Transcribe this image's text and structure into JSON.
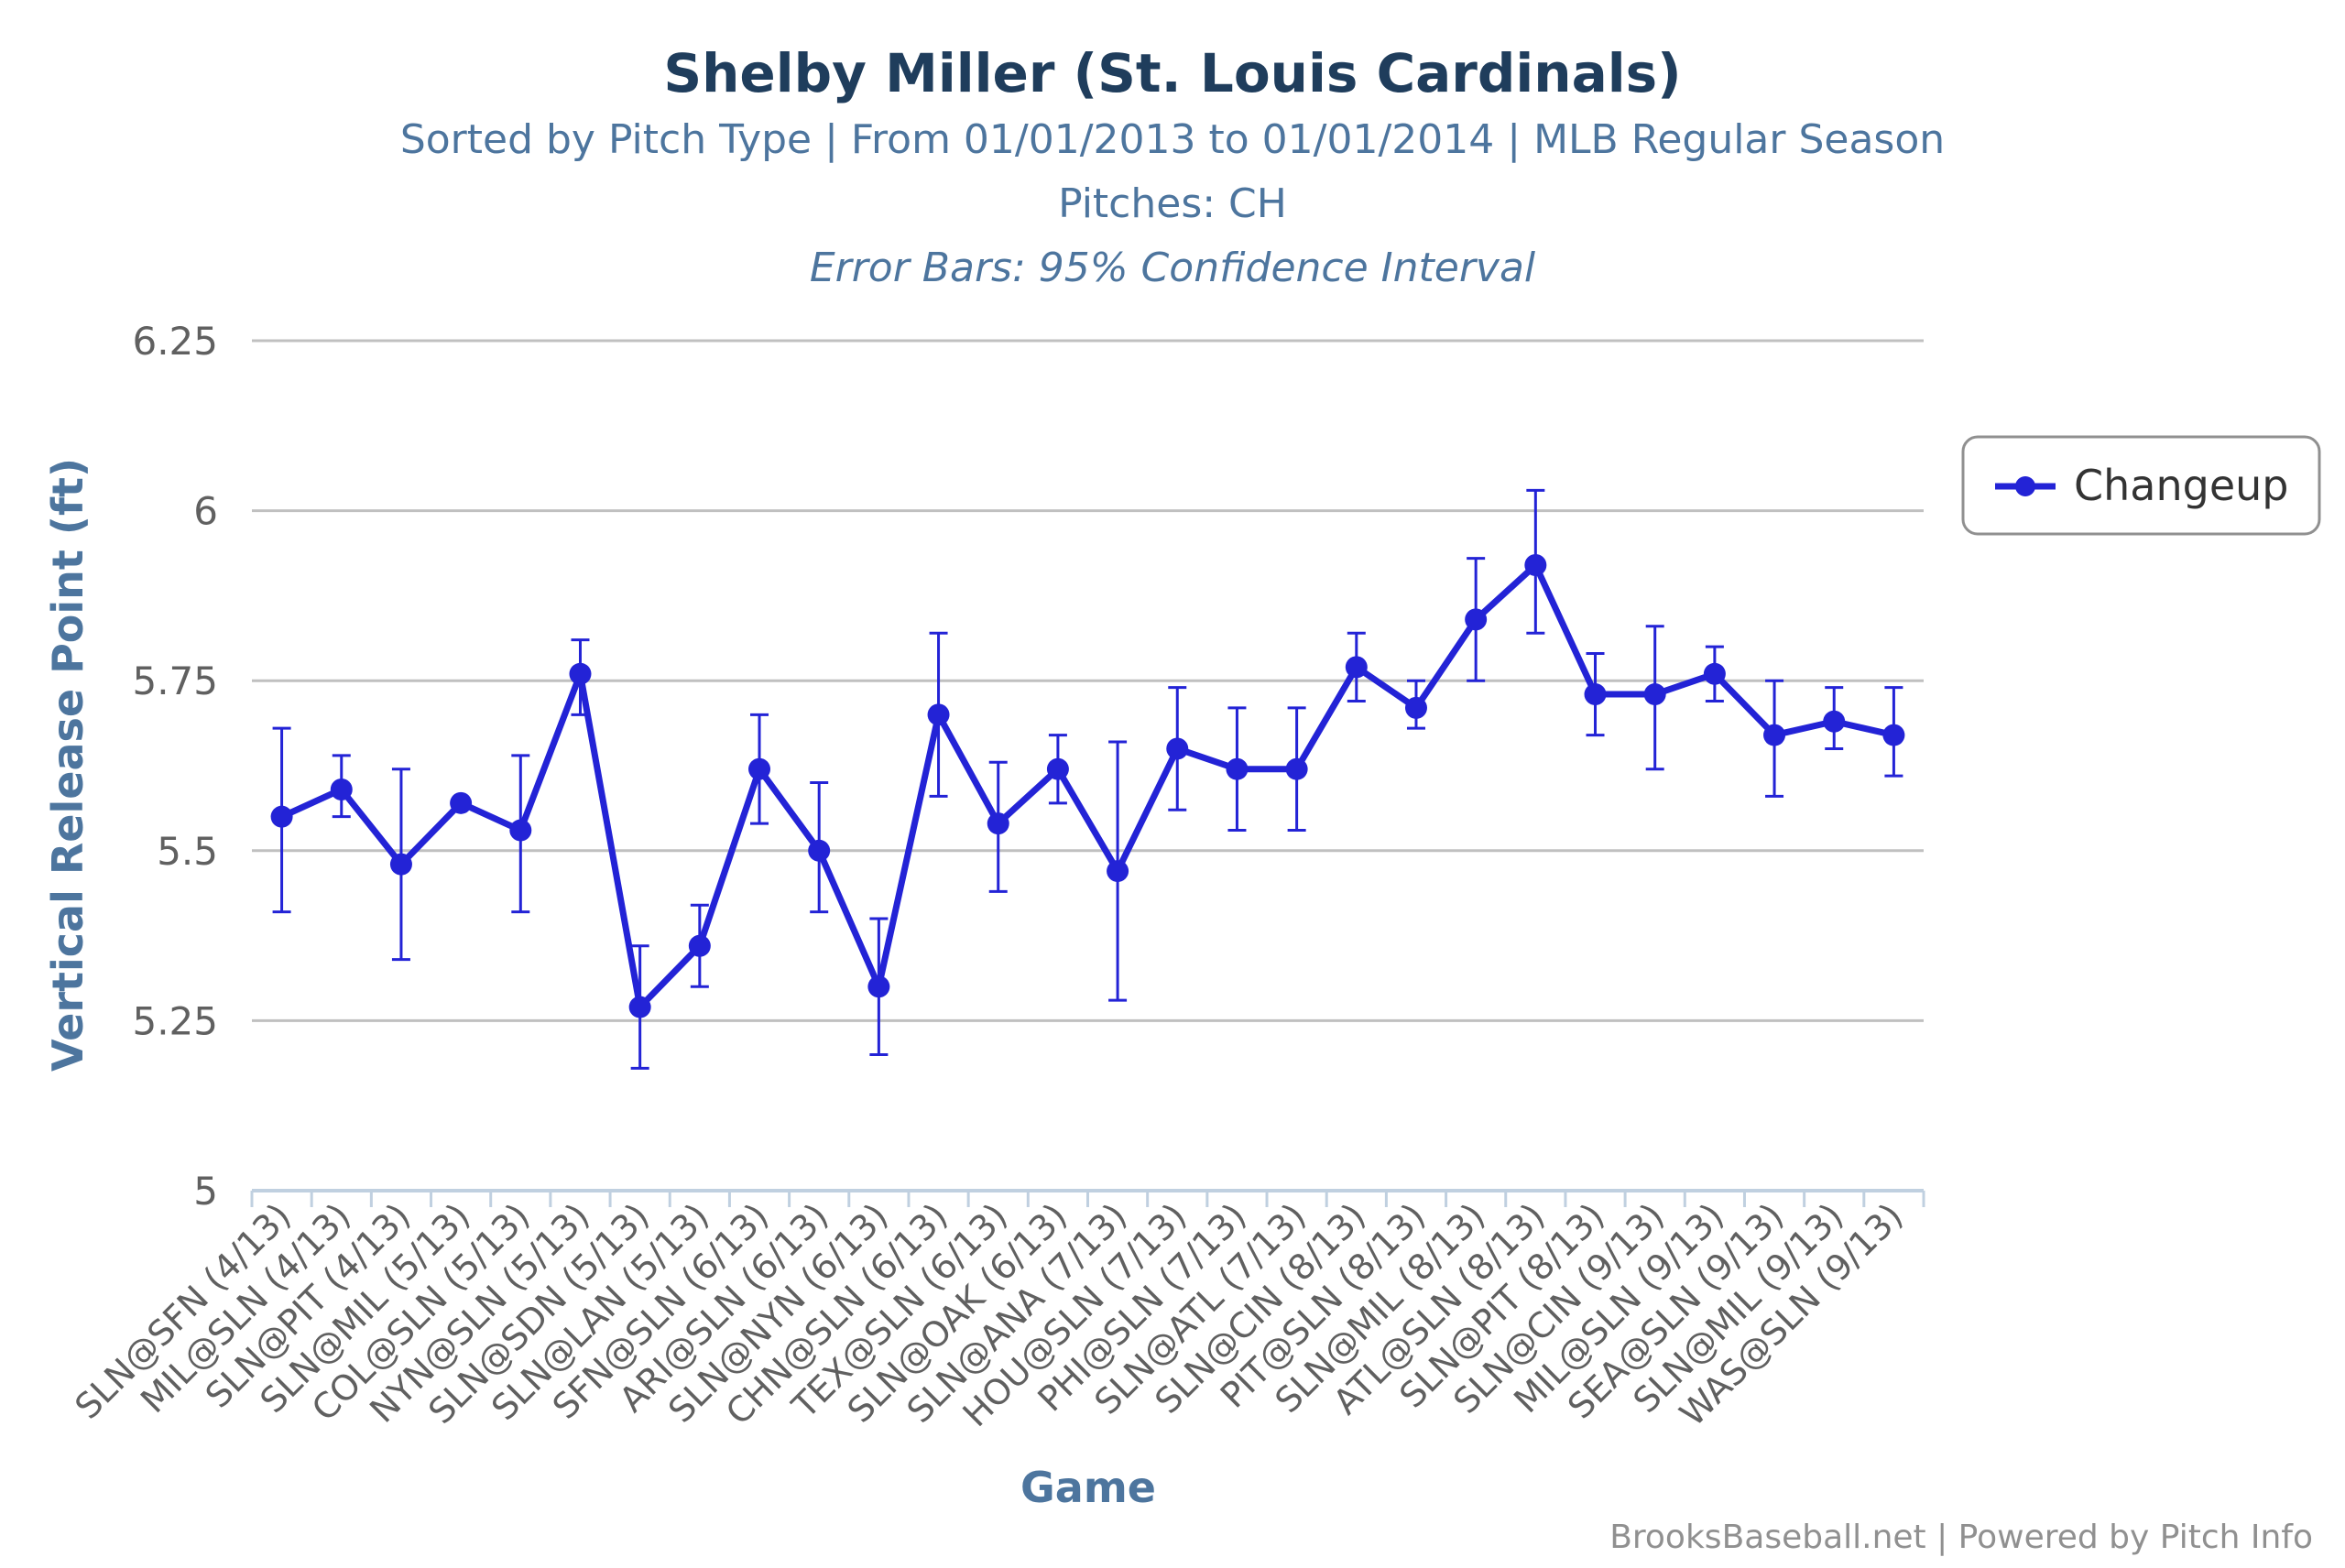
{
  "chart_data": {
    "type": "line",
    "title": "Shelby Miller (St. Louis Cardinals)",
    "subtitle_lines": [
      "Sorted by Pitch Type | From 01/01/2013 to 01/01/2014 | MLB Regular Season",
      "Pitches: CH"
    ],
    "subtitle_italic": "Error Bars: 95% Confidence Interval",
    "xlabel": "Game",
    "ylabel": "Vertical Release Point (ft)",
    "ylim": [
      5,
      6.25
    ],
    "yticks": [
      5,
      5.25,
      5.5,
      5.75,
      6,
      6.25
    ],
    "ytick_labels": [
      "5",
      "5.25",
      "5.5",
      "5.75",
      "6",
      "6.25"
    ],
    "grid": true,
    "legend_position": "right",
    "categories": [
      "SLN@SFN (4/13)",
      "MIL@SLN (4/13)",
      "SLN@PIT (4/13)",
      "SLN@MIL (5/13)",
      "COL@SLN (5/13)",
      "NYN@SLN (5/13)",
      "SLN@SDN (5/13)",
      "SLN@LAN (5/13)",
      "SFN@SLN (6/13)",
      "ARI@SLN (6/13)",
      "SLN@NYN (6/13)",
      "CHN@SLN (6/13)",
      "TEX@SLN (6/13)",
      "SLN@OAK (6/13)",
      "SLN@ANA (7/13)",
      "HOU@SLN (7/13)",
      "PHI@SLN (7/13)",
      "SLN@ATL (7/13)",
      "SLN@CIN (8/13)",
      "PIT@SLN (8/13)",
      "SLN@MIL (8/13)",
      "ATL@SLN (8/13)",
      "SLN@PIT (8/13)",
      "SLN@CIN (9/13)",
      "MIL@SLN (9/13)",
      "SEA@SLN (9/13)",
      "SLN@MIL (9/13)",
      "WAS@SLN (9/13)"
    ],
    "series": [
      {
        "name": "Changeup",
        "color": "#2323d6",
        "values": [
          5.55,
          5.59,
          5.48,
          5.57,
          5.53,
          5.76,
          5.27,
          5.36,
          5.62,
          5.5,
          5.3,
          5.7,
          5.54,
          5.62,
          5.47,
          5.65,
          5.62,
          5.62,
          5.77,
          5.71,
          5.84,
          5.92,
          5.73,
          5.73,
          5.76,
          5.67,
          5.69,
          5.67
        ],
        "error_low": [
          5.41,
          5.55,
          5.34,
          null,
          5.41,
          5.7,
          5.18,
          5.3,
          5.54,
          5.41,
          5.2,
          5.58,
          5.44,
          5.57,
          5.28,
          5.56,
          5.53,
          5.53,
          5.72,
          5.68,
          5.75,
          5.82,
          5.67,
          5.62,
          5.72,
          5.58,
          5.65,
          5.61
        ],
        "error_high": [
          5.68,
          5.64,
          5.62,
          null,
          5.64,
          5.81,
          5.36,
          5.42,
          5.7,
          5.6,
          5.4,
          5.82,
          5.63,
          5.67,
          5.66,
          5.74,
          5.71,
          5.71,
          5.82,
          5.75,
          5.93,
          6.03,
          5.79,
          5.83,
          5.8,
          5.75,
          5.74,
          5.74
        ]
      }
    ],
    "credits": "BrooksBaseball.net | Powered by Pitch Info",
    "colors": {
      "title": "#1f3d5c",
      "subtitle": "#4d759e",
      "axis_label": "#4d759e",
      "tick_label": "#606060",
      "grid": "#c0c0c0",
      "axis_line": "#c0d0e0",
      "credits": "#909090",
      "legend_border": "#909090"
    }
  }
}
